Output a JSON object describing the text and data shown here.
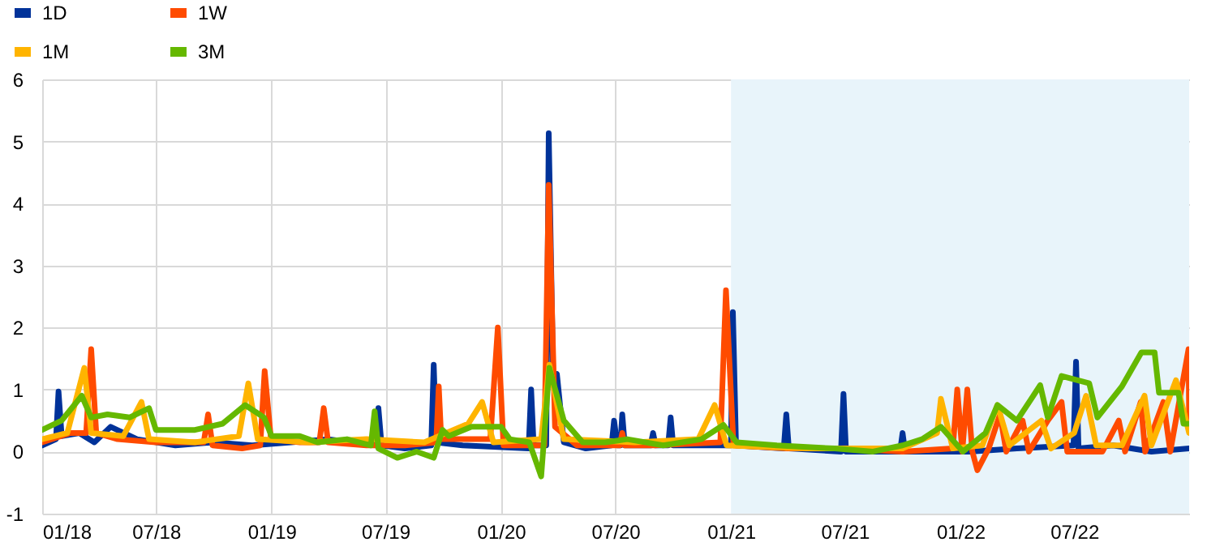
{
  "chart_data": {
    "type": "line",
    "xlim": [
      "2018-01-01",
      "2022-12-31"
    ],
    "xticks": [
      {
        "value": "2018-01-01",
        "label": "01/18"
      },
      {
        "value": "2018-07-01",
        "label": "07/18"
      },
      {
        "value": "2019-01-01",
        "label": "01/19"
      },
      {
        "value": "2019-07-01",
        "label": "07/19"
      },
      {
        "value": "2020-01-01",
        "label": "01/20"
      },
      {
        "value": "2020-07-01",
        "label": "07/20"
      },
      {
        "value": "2021-01-01",
        "label": "01/21"
      },
      {
        "value": "2021-07-01",
        "label": "07/21"
      },
      {
        "value": "2022-01-01",
        "label": "01/22"
      },
      {
        "value": "2022-07-01",
        "label": "07/22"
      }
    ],
    "ylim": [
      -1,
      6
    ],
    "yticks": [
      -1,
      0,
      1,
      2,
      3,
      4,
      5,
      6
    ],
    "grid": true,
    "legend": "top left",
    "bands": [
      {
        "axis": "x",
        "from": "2021-01-01",
        "to": "2022-12-31",
        "color": "#e8f4fa"
      }
    ],
    "series": [
      {
        "name": "1D",
        "color": "#003299",
        "x": [
          "2018-01-01",
          "2018-01-23",
          "2018-01-27",
          "2018-02-01",
          "2018-03-01",
          "2018-03-25",
          "2018-04-20",
          "2018-06-01",
          "2018-08-01",
          "2018-10-01",
          "2018-12-01",
          "2019-02-01",
          "2019-04-01",
          "2019-06-16",
          "2019-06-20",
          "2019-06-25",
          "2019-08-01",
          "2019-09-12",
          "2019-09-16",
          "2019-09-20",
          "2019-11-01",
          "2020-02-14",
          "2020-02-18",
          "2020-02-22",
          "2020-03-13",
          "2020-03-17",
          "2020-03-24",
          "2020-03-30",
          "2020-04-10",
          "2020-05-15",
          "2020-06-25",
          "2020-06-29",
          "2020-07-04",
          "2020-07-09",
          "2020-07-12",
          "2020-07-16",
          "2020-08-26",
          "2020-08-30",
          "2020-09-03",
          "2020-09-23",
          "2020-09-27",
          "2020-10-01",
          "2020-12-20",
          "2021-01-01",
          "2021-01-04",
          "2021-01-09",
          "2021-03-26",
          "2021-03-30",
          "2021-04-03",
          "2021-06-25",
          "2021-06-29",
          "2021-07-03",
          "2021-09-27",
          "2021-10-01",
          "2021-10-05",
          "2022-01-15",
          "2022-04-01",
          "2022-06-30",
          "2022-07-04",
          "2022-07-08",
          "2022-09-01",
          "2022-11-01",
          "2022-12-31"
        ],
        "values": [
          0.1,
          0.2,
          0.97,
          0.25,
          0.3,
          0.15,
          0.4,
          0.2,
          0.1,
          0.15,
          0.1,
          0.15,
          0.2,
          0.1,
          0.7,
          0.1,
          0.05,
          0.1,
          1.4,
          0.15,
          0.1,
          0.05,
          1.0,
          0.1,
          0.1,
          5.13,
          1.2,
          1.25,
          0.15,
          0.05,
          0.1,
          0.5,
          0.1,
          0.1,
          0.6,
          0.1,
          0.1,
          0.3,
          0.1,
          0.1,
          0.55,
          0.1,
          0.1,
          0.1,
          2.25,
          0.1,
          0.05,
          0.6,
          0.05,
          0.0,
          0.93,
          0.0,
          0.0,
          0.3,
          0.0,
          0.0,
          0.05,
          0.1,
          1.45,
          0.05,
          0.1,
          0.0,
          0.05
        ]
      },
      {
        "name": "1W",
        "color": "#ff4b00",
        "x": [
          "2018-01-01",
          "2018-02-15",
          "2018-03-12",
          "2018-03-20",
          "2018-03-28",
          "2018-05-01",
          "2018-07-01",
          "2018-09-15",
          "2018-09-22",
          "2018-09-29",
          "2018-11-15",
          "2018-12-14",
          "2018-12-21",
          "2018-12-31",
          "2019-02-15",
          "2019-03-18",
          "2019-03-25",
          "2019-04-01",
          "2019-06-01",
          "2019-08-01",
          "2019-09-20",
          "2019-09-24",
          "2019-09-28",
          "2019-12-15",
          "2019-12-27",
          "2020-01-05",
          "2020-03-10",
          "2020-03-17",
          "2020-03-27",
          "2020-05-01",
          "2020-07-08",
          "2020-07-12",
          "2020-07-16",
          "2020-09-01",
          "2020-12-15",
          "2020-12-24",
          "2021-01-05",
          "2021-04-01",
          "2021-07-01",
          "2021-10-01",
          "2021-12-20",
          "2021-12-27",
          "2022-01-04",
          "2022-01-12",
          "2022-01-20",
          "2022-01-28",
          "2022-02-15",
          "2022-03-05",
          "2022-03-15",
          "2022-04-10",
          "2022-04-20",
          "2022-05-20",
          "2022-06-11",
          "2022-06-20",
          "2022-08-15",
          "2022-09-10",
          "2022-09-20",
          "2022-10-15",
          "2022-10-22",
          "2022-11-20",
          "2022-12-01",
          "2022-12-30",
          "2022-12-31"
        ],
        "values": [
          0.15,
          0.3,
          0.3,
          1.65,
          0.3,
          0.2,
          0.15,
          0.15,
          0.6,
          0.1,
          0.05,
          0.1,
          1.3,
          0.2,
          0.15,
          0.15,
          0.7,
          0.15,
          0.1,
          0.1,
          0.15,
          1.05,
          0.2,
          0.2,
          2.0,
          0.1,
          0.1,
          4.3,
          0.4,
          0.1,
          0.1,
          0.3,
          0.1,
          0.1,
          0.15,
          2.6,
          0.1,
          0.05,
          0.05,
          0.0,
          0.05,
          1.0,
          0.0,
          1.0,
          0.0,
          -0.3,
          0.05,
          0.6,
          0.0,
          0.5,
          0.0,
          0.5,
          0.8,
          0.0,
          0.0,
          0.5,
          0.0,
          0.8,
          0.0,
          0.8,
          0.0,
          1.65,
          0.5
        ]
      },
      {
        "name": "1M",
        "color": "#ffb400",
        "x": [
          "2018-01-01",
          "2018-02-10",
          "2018-03-09",
          "2018-03-20",
          "2018-05-10",
          "2018-06-08",
          "2018-06-20",
          "2018-09-01",
          "2018-11-10",
          "2018-11-25",
          "2018-12-10",
          "2019-03-01",
          "2019-06-01",
          "2019-09-01",
          "2019-11-10",
          "2019-12-02",
          "2019-12-20",
          "2020-03-05",
          "2020-03-18",
          "2020-04-10",
          "2020-08-01",
          "2020-11-10",
          "2020-12-06",
          "2020-12-25",
          "2021-05-01",
          "2021-10-01",
          "2021-11-25",
          "2021-12-01",
          "2021-12-20",
          "2022-02-05",
          "2022-03-01",
          "2022-03-20",
          "2022-05-10",
          "2022-05-25",
          "2022-07-01",
          "2022-07-20",
          "2022-08-05",
          "2022-09-15",
          "2022-10-21",
          "2022-11-01",
          "2022-12-10",
          "2022-12-31"
        ],
        "values": [
          0.2,
          0.3,
          1.35,
          0.3,
          0.25,
          0.8,
          0.2,
          0.15,
          0.25,
          1.1,
          0.2,
          0.15,
          0.2,
          0.15,
          0.45,
          0.8,
          0.15,
          0.2,
          1.4,
          0.2,
          0.15,
          0.2,
          0.75,
          0.1,
          0.05,
          0.05,
          0.3,
          0.85,
          0.05,
          0.1,
          0.75,
          0.1,
          0.5,
          0.05,
          0.3,
          0.9,
          0.1,
          0.1,
          0.9,
          0.1,
          1.15,
          0.3
        ]
      },
      {
        "name": "3M",
        "color": "#65b800",
        "x": [
          "2018-01-01",
          "2018-02-01",
          "2018-03-05",
          "2018-03-20",
          "2018-04-15",
          "2018-05-20",
          "2018-06-20",
          "2018-07-01",
          "2018-09-01",
          "2018-10-15",
          "2018-11-20",
          "2018-12-20",
          "2019-01-01",
          "2019-02-15",
          "2019-03-15",
          "2019-05-01",
          "2019-06-08",
          "2019-06-14",
          "2019-06-20",
          "2019-07-20",
          "2019-08-20",
          "2019-09-16",
          "2019-09-30",
          "2019-10-10",
          "2019-11-15",
          "2020-01-01",
          "2020-01-15",
          "2020-02-15",
          "2020-03-05",
          "2020-03-18",
          "2020-04-10",
          "2020-05-10",
          "2020-06-15",
          "2020-07-20",
          "2020-09-15",
          "2020-11-15",
          "2020-12-20",
          "2021-01-10",
          "2021-03-15",
          "2021-06-15",
          "2021-08-15",
          "2021-10-01",
          "2021-11-01",
          "2021-12-01",
          "2022-01-05",
          "2022-02-10",
          "2022-03-01",
          "2022-04-01",
          "2022-05-08",
          "2022-05-20",
          "2022-06-11",
          "2022-07-25",
          "2022-08-07",
          "2022-09-15",
          "2022-10-16",
          "2022-11-06",
          "2022-11-13",
          "2022-12-14",
          "2022-12-22",
          "2022-12-31"
        ],
        "values": [
          0.35,
          0.5,
          0.9,
          0.55,
          0.6,
          0.55,
          0.7,
          0.35,
          0.35,
          0.45,
          0.75,
          0.55,
          0.25,
          0.25,
          0.15,
          0.2,
          0.1,
          0.65,
          0.05,
          -0.1,
          0.0,
          -0.1,
          0.35,
          0.25,
          0.4,
          0.4,
          0.2,
          0.15,
          -0.4,
          1.35,
          0.5,
          0.15,
          0.15,
          0.2,
          0.1,
          0.2,
          0.43,
          0.15,
          0.1,
          0.05,
          0.0,
          0.1,
          0.2,
          0.4,
          0.0,
          0.3,
          0.75,
          0.5,
          1.07,
          0.55,
          1.22,
          1.1,
          0.55,
          1.05,
          1.6,
          1.6,
          0.95,
          0.95,
          0.45,
          0.45
        ]
      }
    ]
  }
}
